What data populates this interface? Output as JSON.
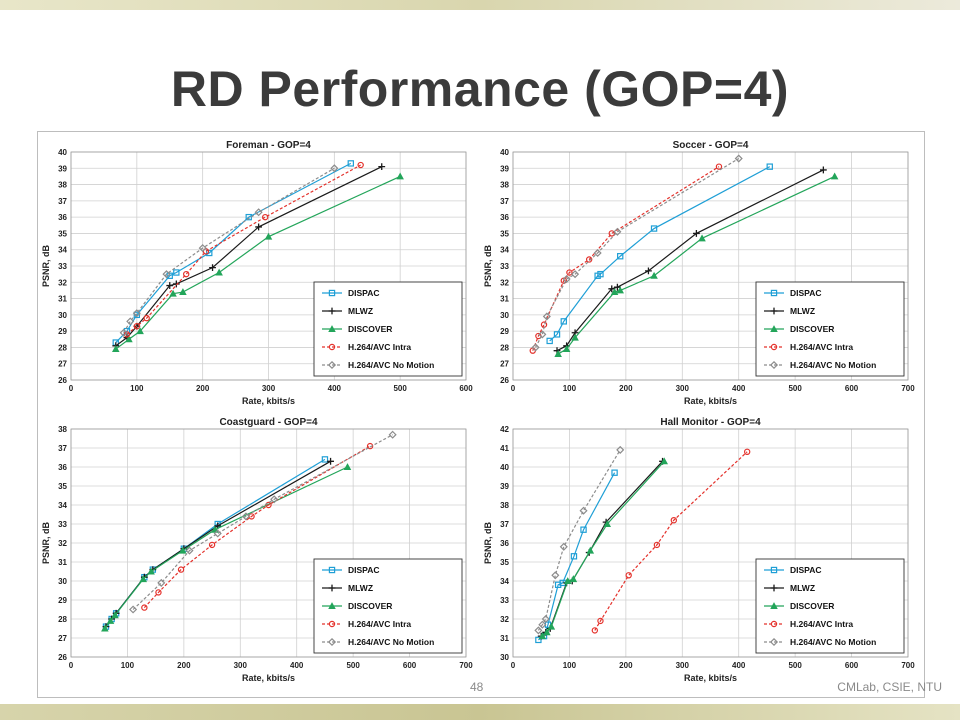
{
  "slide": {
    "title": "RD Performance (GOP=4)",
    "page_number": "48",
    "footer": "CMLab, CSIE, NTU"
  },
  "series_styles": [
    {
      "name": "DISPAC",
      "color": "#1f9fd6",
      "marker": "square",
      "dash": "solid"
    },
    {
      "name": "MLWZ",
      "color": "#1a1a1a",
      "marker": "plus",
      "dash": "solid"
    },
    {
      "name": "DISCOVER",
      "color": "#23a55a",
      "marker": "triangle",
      "dash": "solid"
    },
    {
      "name": "H.264/AVC Intra",
      "color": "#e4312b",
      "marker": "circle",
      "dash": "dashed"
    },
    {
      "name": "H.264/AVC No Motion",
      "color": "#8c8c8c",
      "marker": "diamond",
      "dash": "dashed"
    }
  ],
  "chart_data": [
    {
      "type": "line",
      "title": "Foreman - GOP=4",
      "xlabel": "Rate, kbits/s",
      "ylabel": "PSNR, dB",
      "xlim": [
        0,
        600
      ],
      "ylim": [
        26,
        40
      ],
      "xticks": [
        0,
        100,
        200,
        300,
        400,
        500,
        600
      ],
      "yticks": [
        26,
        27,
        28,
        29,
        30,
        31,
        32,
        33,
        34,
        35,
        36,
        37,
        38,
        39,
        40
      ],
      "grid": true,
      "legend_position": "bottom-right",
      "series": [
        {
          "name": "DISPAC",
          "x": [
            68,
            85,
            100,
            150,
            160,
            210,
            270,
            425
          ],
          "y": [
            28.3,
            29.0,
            30.0,
            32.4,
            32.6,
            33.8,
            36.0,
            39.3
          ]
        },
        {
          "name": "MLWZ",
          "x": [
            68,
            85,
            100,
            150,
            160,
            215,
            285,
            472
          ],
          "y": [
            28.1,
            28.6,
            29.3,
            31.8,
            31.9,
            32.9,
            35.4,
            39.1
          ]
        },
        {
          "name": "DISCOVER",
          "x": [
            68,
            88,
            105,
            155,
            170,
            225,
            300,
            500
          ],
          "y": [
            27.9,
            28.5,
            29.0,
            31.3,
            31.4,
            32.6,
            34.8,
            38.5
          ]
        },
        {
          "name": "H.264/AVC Intra",
          "x": [
            85,
            100,
            115,
            175,
            205,
            295,
            440
          ],
          "y": [
            28.8,
            29.3,
            29.8,
            32.5,
            33.9,
            36.0,
            39.2
          ]
        },
        {
          "name": "H.264/AVC No Motion",
          "x": [
            80,
            90,
            100,
            145,
            200,
            285,
            400
          ],
          "y": [
            28.9,
            29.6,
            30.1,
            32.5,
            34.1,
            36.3,
            39.0
          ]
        }
      ]
    },
    {
      "type": "line",
      "title": "Soccer - GOP=4",
      "xlabel": "Rate, kbits/s",
      "ylabel": "PSNR, dB",
      "xlim": [
        0,
        700
      ],
      "ylim": [
        26,
        40
      ],
      "xticks": [
        0,
        100,
        200,
        300,
        400,
        500,
        600,
        700
      ],
      "yticks": [
        26,
        27,
        28,
        29,
        30,
        31,
        32,
        33,
        34,
        35,
        36,
        37,
        38,
        39,
        40
      ],
      "grid": true,
      "legend_position": "bottom-right",
      "series": [
        {
          "name": "DISPAC",
          "x": [
            65,
            78,
            90,
            150,
            155,
            190,
            250,
            455
          ],
          "y": [
            28.4,
            28.8,
            29.6,
            32.4,
            32.5,
            33.6,
            35.3,
            39.1
          ]
        },
        {
          "name": "MLWZ",
          "x": [
            78,
            95,
            110,
            175,
            185,
            240,
            325,
            550
          ],
          "y": [
            27.8,
            28.1,
            28.9,
            31.6,
            31.7,
            32.7,
            35.0,
            38.9
          ]
        },
        {
          "name": "DISCOVER",
          "x": [
            80,
            95,
            110,
            180,
            190,
            250,
            335,
            570
          ],
          "y": [
            27.6,
            27.9,
            28.6,
            31.4,
            31.5,
            32.4,
            34.7,
            38.5
          ]
        },
        {
          "name": "H.264/AVC Intra",
          "x": [
            35,
            45,
            55,
            90,
            100,
            135,
            175,
            365
          ],
          "y": [
            27.8,
            28.7,
            29.4,
            32.1,
            32.6,
            33.4,
            35.0,
            39.1
          ]
        },
        {
          "name": "H.264/AVC No Motion",
          "x": [
            40,
            52,
            60,
            95,
            110,
            150,
            185,
            400
          ],
          "y": [
            28.0,
            28.8,
            29.9,
            32.2,
            32.5,
            33.8,
            35.1,
            39.6
          ]
        }
      ]
    },
    {
      "type": "line",
      "title": "Coastguard - GOP=4",
      "xlabel": "Rate, kbits/s",
      "ylabel": "PSNR, dB",
      "xlim": [
        0,
        700
      ],
      "ylim": [
        26,
        38
      ],
      "xticks": [
        0,
        100,
        200,
        300,
        400,
        500,
        600,
        700
      ],
      "yticks": [
        26,
        27,
        28,
        29,
        30,
        31,
        32,
        33,
        34,
        35,
        36,
        37,
        38
      ],
      "grid": true,
      "legend_position": "bottom-right",
      "series": [
        {
          "name": "DISPAC",
          "x": [
            62,
            72,
            80,
            130,
            145,
            200,
            260,
            450
          ],
          "y": [
            27.6,
            28.0,
            28.3,
            30.2,
            30.6,
            31.7,
            33.0,
            36.4
          ]
        },
        {
          "name": "MLWZ",
          "x": [
            62,
            72,
            80,
            130,
            145,
            200,
            260,
            460
          ],
          "y": [
            27.6,
            28.0,
            28.3,
            30.2,
            30.6,
            31.7,
            32.9,
            36.3
          ]
        },
        {
          "name": "DISCOVER",
          "x": [
            60,
            70,
            78,
            128,
            142,
            198,
            255,
            490
          ],
          "y": [
            27.5,
            27.9,
            28.2,
            30.1,
            30.5,
            31.6,
            32.7,
            36.0
          ]
        },
        {
          "name": "H.264/AVC Intra",
          "x": [
            130,
            155,
            195,
            250,
            320,
            350,
            530
          ],
          "y": [
            28.6,
            29.4,
            30.6,
            31.9,
            33.4,
            34.0,
            37.1
          ]
        },
        {
          "name": "H.264/AVC No Motion",
          "x": [
            110,
            160,
            210,
            260,
            310,
            360,
            570
          ],
          "y": [
            28.5,
            29.9,
            31.6,
            32.5,
            33.4,
            34.3,
            37.7
          ]
        }
      ]
    },
    {
      "type": "line",
      "title": "Hall Monitor - GOP=4",
      "xlabel": "Rate, kbits/s",
      "ylabel": "PSNR, dB",
      "xlim": [
        0,
        700
      ],
      "ylim": [
        30,
        42
      ],
      "xticks": [
        0,
        100,
        200,
        300,
        400,
        500,
        600,
        700
      ],
      "yticks": [
        30,
        31,
        32,
        33,
        34,
        35,
        36,
        37,
        38,
        39,
        40,
        41,
        42
      ],
      "grid": true,
      "legend_position": "bottom-right",
      "series": [
        {
          "name": "DISPAC",
          "x": [
            45,
            55,
            62,
            80,
            88,
            108,
            125,
            180
          ],
          "y": [
            30.9,
            31.1,
            31.7,
            33.8,
            33.9,
            35.3,
            36.7,
            39.7
          ]
        },
        {
          "name": "MLWZ",
          "x": [
            50,
            58,
            66,
            95,
            105,
            135,
            165,
            265
          ],
          "y": [
            31.1,
            31.3,
            31.5,
            33.9,
            34.0,
            35.5,
            37.1,
            40.3
          ]
        },
        {
          "name": "DISCOVER",
          "x": [
            52,
            60,
            68,
            97,
            107,
            137,
            167,
            268
          ],
          "y": [
            31.1,
            31.3,
            31.6,
            34.0,
            34.1,
            35.6,
            37.0,
            40.3
          ]
        },
        {
          "name": "H.264/AVC Intra",
          "x": [
            145,
            155,
            205,
            255,
            285,
            415
          ],
          "y": [
            31.4,
            31.9,
            34.3,
            35.9,
            37.2,
            40.8
          ]
        },
        {
          "name": "H.264/AVC No Motion",
          "x": [
            45,
            52,
            58,
            75,
            90,
            125,
            190
          ],
          "y": [
            31.4,
            31.7,
            32.0,
            34.3,
            35.8,
            37.7,
            40.9
          ]
        }
      ]
    }
  ]
}
